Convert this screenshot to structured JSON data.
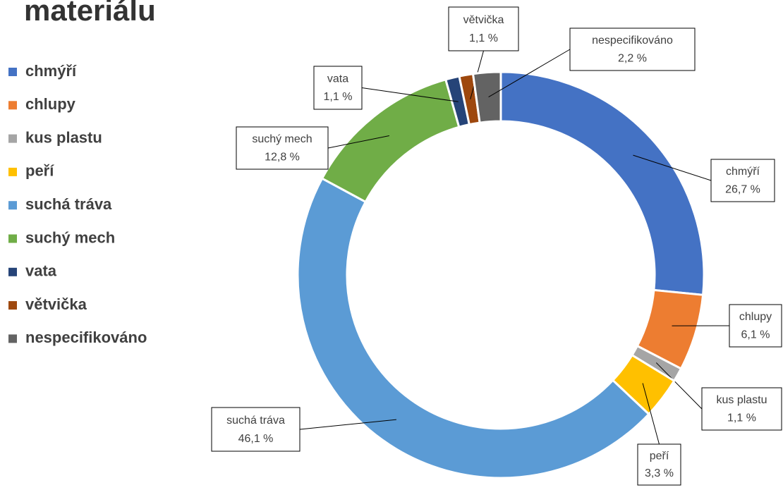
{
  "chart_data": {
    "type": "donut",
    "title": "materiálu",
    "categories": [
      "chmýří",
      "chlupy",
      "kus plastu",
      "peří",
      "suchá tráva",
      "suchý mech",
      "vata",
      "větvička",
      "nespecifikováno"
    ],
    "values": [
      26.7,
      6.1,
      1.1,
      3.3,
      46.1,
      12.8,
      1.1,
      1.1,
      2.2
    ],
    "value_labels": [
      "26,7 %",
      "6,1 %",
      "1,1 %",
      "3,3 %",
      "46,1 %",
      "12,8 %",
      "1,1 %",
      "1,1 %",
      "2,2 %"
    ],
    "colors": [
      "#4472c4",
      "#ed7d31",
      "#a5a5a5",
      "#ffc000",
      "#5b9bd5",
      "#70ad47",
      "#264478",
      "#9e480e",
      "#636363"
    ],
    "legend": "left"
  }
}
